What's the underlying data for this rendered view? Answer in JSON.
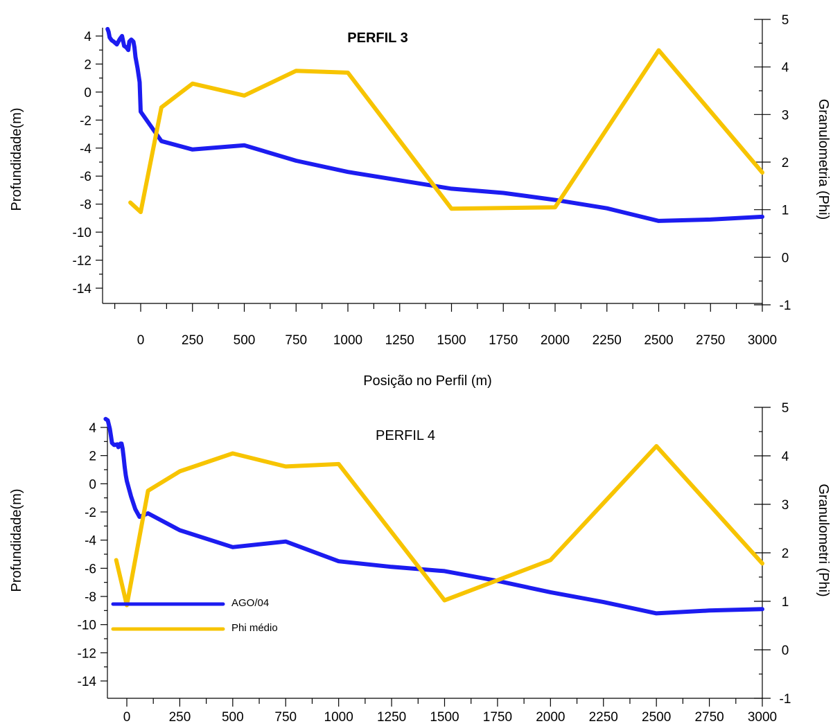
{
  "colors": {
    "depth": "#1c1cf0",
    "phi": "#f7c400",
    "axis": "#000000"
  },
  "chart_data": [
    {
      "type": "line",
      "title": "PERFIL 3",
      "xlabel": "Posição no Perfil (m)",
      "ylabel": "Profundidade(m)",
      "y2label": "Granulometria (Phi)",
      "xticks": [
        "0",
        "250",
        "500",
        "750",
        "1000",
        "1250",
        "1500",
        "1750",
        "2000",
        "2250",
        "2500",
        "2750",
        "3000"
      ],
      "yticks": [
        "4",
        "2",
        "0",
        "-2",
        "-4",
        "-6",
        "-8",
        "-10",
        "-12",
        "-14"
      ],
      "y2ticks": [
        "5",
        "4",
        "3",
        "2",
        "1",
        "0",
        "-1"
      ],
      "xlim": [
        -170,
        3000
      ],
      "ylim": [
        -15,
        5
      ],
      "y2lim": [
        -1,
        5
      ],
      "series": [
        {
          "axis": "left",
          "color": "#1c1cf0",
          "points": [
            [
              -160,
              4.5
            ],
            [
              -155,
              4.3
            ],
            [
              -150,
              3.9
            ],
            [
              -140,
              3.7
            ],
            [
              -130,
              3.6
            ],
            [
              -115,
              3.4
            ],
            [
              -100,
              3.8
            ],
            [
              -90,
              4.0
            ],
            [
              -80,
              3.3
            ],
            [
              -70,
              3.2
            ],
            [
              -60,
              3.0
            ],
            [
              -55,
              3.6
            ],
            [
              -45,
              3.75
            ],
            [
              -35,
              3.6
            ],
            [
              -30,
              3.2
            ],
            [
              -25,
              2.5
            ],
            [
              -15,
              1.7
            ],
            [
              -5,
              0.7
            ],
            [
              0,
              -1.4
            ],
            [
              100,
              -3.5
            ],
            [
              250,
              -4.1
            ],
            [
              500,
              -3.8
            ],
            [
              750,
              -4.9
            ],
            [
              1000,
              -5.7
            ],
            [
              1250,
              -6.3
            ],
            [
              1500,
              -6.9
            ],
            [
              1750,
              -7.2
            ],
            [
              2000,
              -7.7
            ],
            [
              2250,
              -8.3
            ],
            [
              2500,
              -9.2
            ],
            [
              2750,
              -9.1
            ],
            [
              3000,
              -8.9
            ]
          ]
        },
        {
          "axis": "right",
          "color": "#f7c400",
          "points": [
            [
              -50,
              1.15
            ],
            [
              0,
              0.95
            ],
            [
              100,
              3.15
            ],
            [
              250,
              3.65
            ],
            [
              500,
              3.4
            ],
            [
              750,
              3.92
            ],
            [
              1000,
              3.88
            ],
            [
              1500,
              1.02
            ],
            [
              2000,
              1.05
            ],
            [
              2500,
              4.35
            ],
            [
              3000,
              1.78
            ]
          ]
        }
      ]
    },
    {
      "type": "line",
      "title": "PERFIL 4",
      "ylabel": "Profundidade(m)",
      "y2label": "Granulometri (Phi)",
      "xticks": [
        "0",
        "250",
        "500",
        "750",
        "1000",
        "1250",
        "1500",
        "1750",
        "2000",
        "2250",
        "2500",
        "2750",
        "3000"
      ],
      "yticks": [
        "4",
        "2",
        "0",
        "-2",
        "-4",
        "-6",
        "-8",
        "-10",
        "-12",
        "-14"
      ],
      "y2ticks": [
        "5",
        "4",
        "3",
        "2",
        "1",
        "0",
        "-1"
      ],
      "xlim": [
        -170,
        3000
      ],
      "ylim": [
        -15,
        5
      ],
      "y2lim": [
        -1,
        5
      ],
      "legend": {
        "placement": "bottom-left"
      },
      "series": [
        {
          "name": "AGO/04",
          "axis": "left",
          "color": "#1c1cf0",
          "points": [
            [
              -100,
              4.6
            ],
            [
              -90,
              4.5
            ],
            [
              -85,
              4.2
            ],
            [
              -80,
              3.9
            ],
            [
              -75,
              3.4
            ],
            [
              -70,
              2.9
            ],
            [
              -60,
              2.75
            ],
            [
              -45,
              2.8
            ],
            [
              -40,
              2.6
            ],
            [
              -30,
              2.85
            ],
            [
              -25,
              2.85
            ],
            [
              -20,
              2.5
            ],
            [
              -15,
              1.9
            ],
            [
              -10,
              1.2
            ],
            [
              -5,
              0.6
            ],
            [
              0,
              0.2
            ],
            [
              20,
              -0.9
            ],
            [
              40,
              -1.8
            ],
            [
              60,
              -2.35
            ],
            [
              100,
              -2.1
            ],
            [
              250,
              -3.3
            ],
            [
              500,
              -4.5
            ],
            [
              750,
              -4.1
            ],
            [
              1000,
              -5.5
            ],
            [
              1250,
              -5.9
            ],
            [
              1500,
              -6.2
            ],
            [
              1750,
              -6.9
            ],
            [
              2000,
              -7.7
            ],
            [
              2250,
              -8.4
            ],
            [
              2500,
              -9.2
            ],
            [
              2750,
              -9.0
            ],
            [
              3000,
              -8.9
            ]
          ]
        },
        {
          "name": "Phi médio",
          "axis": "right",
          "color": "#f7c400",
          "points": [
            [
              -50,
              1.85
            ],
            [
              0,
              0.92
            ],
            [
              100,
              3.28
            ],
            [
              250,
              3.68
            ],
            [
              500,
              4.05
            ],
            [
              750,
              3.78
            ],
            [
              1000,
              3.83
            ],
            [
              1500,
              1.02
            ],
            [
              2000,
              1.85
            ],
            [
              2500,
              4.2
            ],
            [
              3000,
              1.78
            ]
          ]
        }
      ]
    }
  ]
}
